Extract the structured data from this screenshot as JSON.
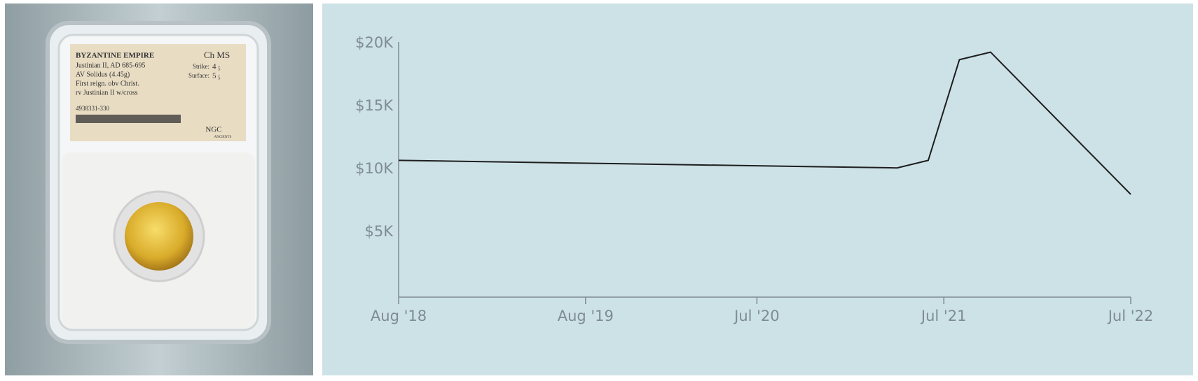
{
  "photo": {
    "label": {
      "title": "BYZANTINE EMPIRE",
      "lines": [
        "Justinian II, AD 685-695",
        "AV Solidus (4.45g)",
        "First reign. obv Christ.",
        "rv Justinian II w/cross"
      ],
      "cert": "4938331-330",
      "grade": "Ch MS",
      "strike_label": "Strike:",
      "strike_grade": "4",
      "strike_max": "5",
      "surface_label": "Surface:",
      "surface_grade": "5",
      "surface_max": "5",
      "brand": "NGC",
      "brand_sub": "ANCIENTS"
    }
  },
  "chart_data": {
    "type": "line",
    "color": "#1e1e1e",
    "x": [
      "2018-08",
      "2021-04",
      "2021-06",
      "2021-08",
      "2021-10",
      "2022-07"
    ],
    "values": [
      10700,
      10100,
      10700,
      18700,
      19300,
      8000
    ],
    "xlim": [
      "2018-08",
      "2022-07"
    ],
    "xticks": [
      {
        "value": "2018-08",
        "label": "Aug '18"
      },
      {
        "value": "2019-08",
        "label": "Aug '19"
      },
      {
        "value": "2020-07",
        "label": "Jul '20"
      },
      {
        "value": "2021-07",
        "label": "Jul '21"
      },
      {
        "value": "2022-07",
        "label": "Jul '22"
      }
    ],
    "ylim": [
      0,
      20000
    ],
    "yticks": [
      {
        "value": 5000,
        "label": "$5K"
      },
      {
        "value": 10000,
        "label": "$10K"
      },
      {
        "value": 15000,
        "label": "$15K"
      },
      {
        "value": 20000,
        "label": "$20K"
      }
    ],
    "grid": false
  }
}
